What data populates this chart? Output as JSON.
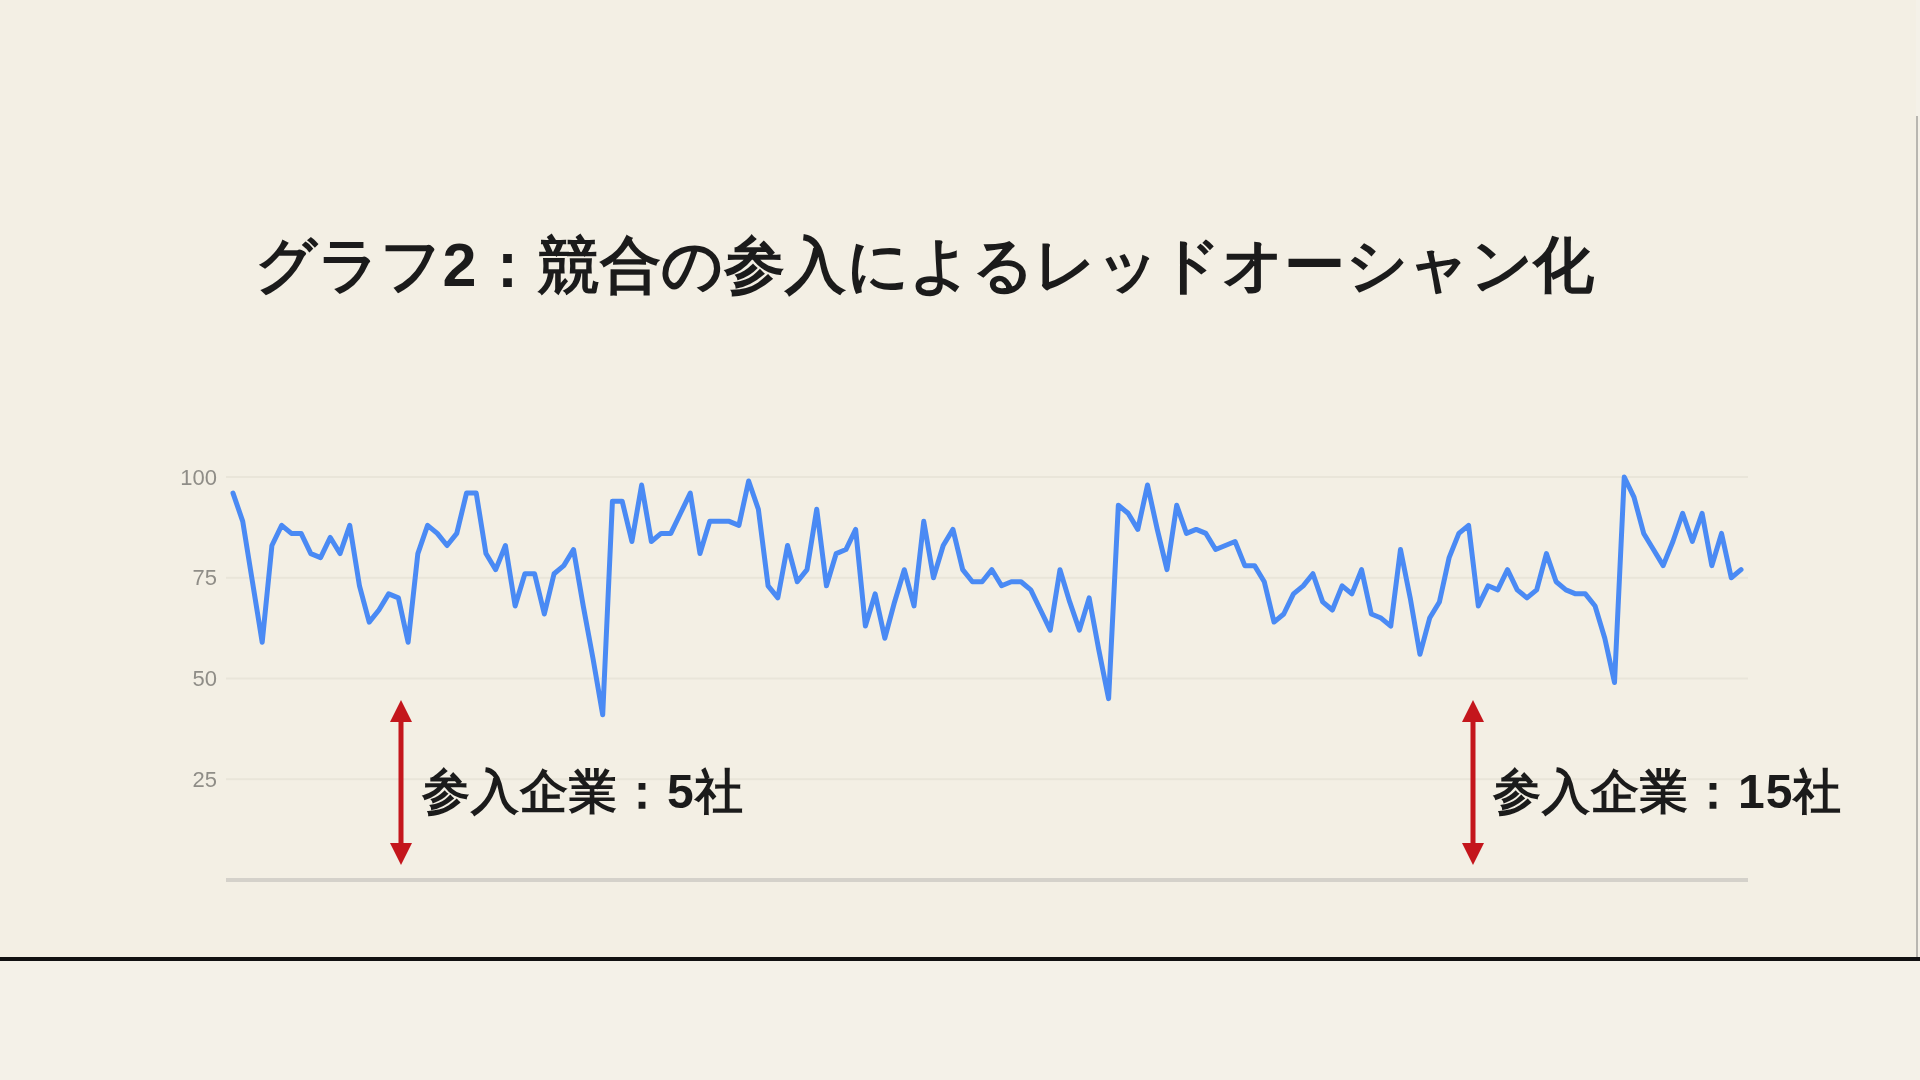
{
  "chart_data": {
    "type": "line",
    "title": "グラフ2：競合の参入によるレッドオーシャン化",
    "categories": [
      null,
      null,
      null,
      null,
      null,
      null,
      null,
      null,
      null,
      null,
      null,
      null,
      null,
      null,
      null,
      null,
      null,
      null,
      null,
      null,
      null,
      null,
      null,
      null,
      null,
      null,
      null,
      null,
      null,
      null,
      null,
      null,
      null,
      null,
      null,
      null,
      null,
      null,
      null,
      null,
      null,
      null,
      null,
      null,
      null,
      null,
      null,
      null,
      null,
      null,
      null,
      null,
      null,
      null,
      null,
      null,
      null,
      null,
      null,
      null,
      null,
      null,
      null,
      null,
      null,
      null,
      null,
      null,
      null,
      null,
      null,
      null,
      null,
      null,
      null,
      null,
      null,
      null,
      null,
      null,
      null,
      null,
      null,
      null,
      null,
      null,
      null,
      null,
      null,
      null,
      null,
      null,
      null,
      null,
      null,
      null,
      null,
      null,
      null,
      null,
      null,
      null,
      null,
      null,
      null,
      null,
      null,
      null,
      null,
      null,
      null,
      null,
      null,
      null,
      null,
      null,
      null,
      null,
      null,
      null,
      null,
      null,
      null,
      null,
      null,
      null,
      null,
      null,
      null,
      null,
      null,
      null,
      null,
      null,
      null,
      null,
      null,
      null,
      null,
      null,
      null,
      null,
      null,
      null,
      null,
      null,
      null,
      null,
      null,
      null,
      null,
      null,
      null,
      null,
      null,
      null
    ],
    "values": [
      96,
      89,
      74,
      59,
      83,
      88,
      86,
      86,
      81,
      80,
      85,
      81,
      88,
      73,
      64,
      67,
      71,
      70,
      59,
      81,
      88,
      86,
      83,
      86,
      96,
      96,
      81,
      77,
      83,
      68,
      76,
      76,
      66,
      76,
      78,
      82,
      68,
      55,
      41,
      94,
      94,
      84,
      98,
      84,
      86,
      86,
      91,
      96,
      81,
      89,
      89,
      89,
      88,
      99,
      92,
      73,
      70,
      83,
      74,
      77,
      92,
      73,
      81,
      82,
      87,
      63,
      71,
      60,
      69,
      77,
      68,
      89,
      75,
      83,
      87,
      77,
      74,
      74,
      77,
      73,
      74,
      74,
      72,
      67,
      62,
      77,
      69,
      62,
      70,
      57,
      45,
      93,
      91,
      87,
      98,
      87,
      77,
      93,
      86,
      87,
      86,
      82,
      83,
      84,
      78,
      78,
      74,
      64,
      66,
      71,
      73,
      76,
      69,
      67,
      73,
      71,
      77,
      66,
      65,
      63,
      82,
      70,
      56,
      65,
      69,
      80,
      86,
      88,
      68,
      73,
      72,
      77,
      72,
      70,
      72,
      81,
      74,
      72,
      71,
      71,
      68,
      60,
      49,
      100,
      95,
      86,
      82,
      78,
      84,
      91,
      84,
      91,
      78,
      86,
      75,
      77
    ],
    "color": "#4a8af4",
    "ylim": [
      0,
      100
    ],
    "yticks": [
      25,
      50,
      75,
      100
    ],
    "grid": "y",
    "annotations": [
      "参入企業：5社",
      "参入企業：15社"
    ]
  }
}
